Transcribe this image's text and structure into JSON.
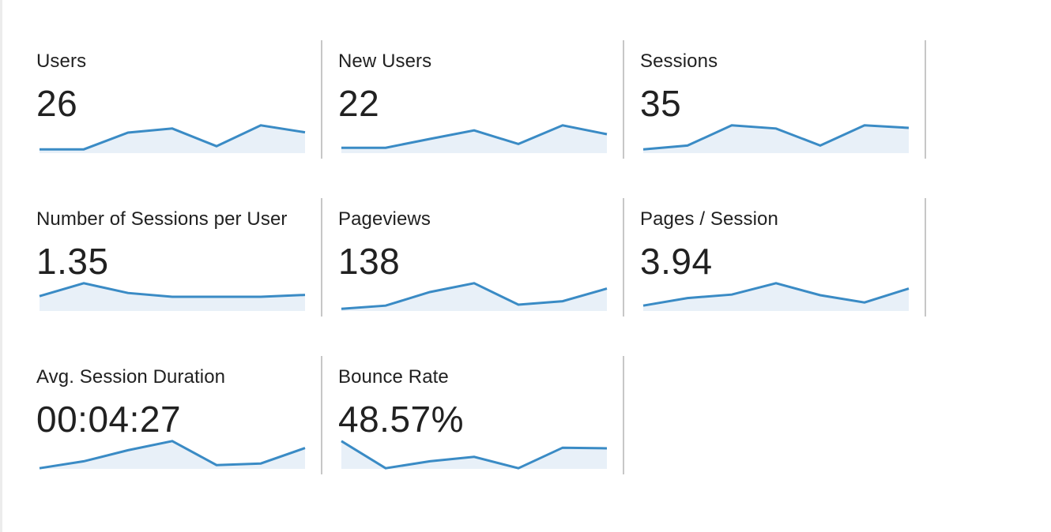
{
  "theme": {
    "line_color": "#3a8bc5",
    "fill_color": "#e8f0f8",
    "text_color": "#212121",
    "divider_color": "#c7c7c7"
  },
  "metrics": [
    {
      "label": "Users",
      "value": "26",
      "trend": [
        0.12,
        0.12,
        0.65,
        0.78,
        0.22,
        0.88,
        0.66
      ]
    },
    {
      "label": "New Users",
      "value": "22",
      "trend": [
        0.17,
        0.17,
        0.45,
        0.72,
        0.29,
        0.88,
        0.6
      ]
    },
    {
      "label": "Sessions",
      "value": "35",
      "trend": [
        0.12,
        0.24,
        0.88,
        0.78,
        0.24,
        0.88,
        0.8
      ]
    },
    {
      "label": "Number of Sessions per User",
      "value": "1.35",
      "trend": [
        0.47,
        0.88,
        0.57,
        0.45,
        0.45,
        0.45,
        0.51
      ]
    },
    {
      "label": "Pageviews",
      "value": "138",
      "trend": [
        0.07,
        0.17,
        0.6,
        0.88,
        0.2,
        0.31,
        0.71
      ]
    },
    {
      "label": "Pages / Session",
      "value": "3.94",
      "trend": [
        0.17,
        0.41,
        0.52,
        0.88,
        0.5,
        0.27,
        0.71
      ]
    },
    {
      "label": "Avg. Session Duration",
      "value": "00:04:27",
      "trend": [
        0.02,
        0.24,
        0.59,
        0.88,
        0.12,
        0.17,
        0.66
      ]
    },
    {
      "label": "Bounce Rate",
      "value": "48.57%",
      "trend": [
        0.88,
        0.02,
        0.24,
        0.38,
        0.02,
        0.67,
        0.65
      ]
    }
  ]
}
